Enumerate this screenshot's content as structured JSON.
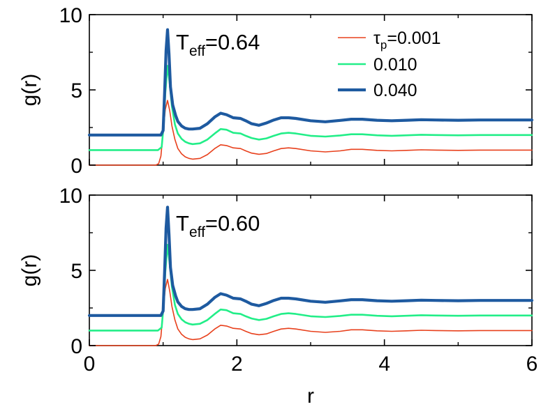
{
  "chart_data": [
    {
      "type": "line",
      "annotation": {
        "prefix": "T",
        "subscript": "eff",
        "value": "=0.64"
      },
      "xlabel": "",
      "ylabel": "g(r)",
      "xlim": [
        0,
        6
      ],
      "ylim": [
        0,
        10
      ],
      "xticks": [
        "0",
        "2",
        "4",
        "6"
      ],
      "yticks": [
        "0",
        "5",
        "10"
      ],
      "grid": false,
      "legend_placement": "top-right",
      "series": [
        {
          "name_prefix": "τ",
          "name_subscript": "p",
          "name_value": "=0.001",
          "color": "#e8401c",
          "width": 1.6,
          "x": [
            0,
            0.9,
            0.94,
            0.97,
            1.0,
            1.03,
            1.06,
            1.09,
            1.12,
            1.16,
            1.2,
            1.25,
            1.3,
            1.35,
            1.4,
            1.5,
            1.6,
            1.7,
            1.78,
            1.86,
            1.95,
            2.05,
            2.12,
            2.2,
            2.3,
            2.4,
            2.5,
            2.6,
            2.7,
            2.8,
            3.0,
            3.2,
            3.4,
            3.55,
            3.7,
            3.9,
            4.1,
            4.3,
            4.5,
            4.7,
            5.0,
            5.3,
            5.6,
            6.0
          ],
          "y": [
            0,
            0,
            0.1,
            0.6,
            2.2,
            3.7,
            4.3,
            3.6,
            2.6,
            1.7,
            1.1,
            0.75,
            0.55,
            0.45,
            0.4,
            0.45,
            0.7,
            1.1,
            1.35,
            1.3,
            1.15,
            1.1,
            0.95,
            0.8,
            0.72,
            0.78,
            0.95,
            1.1,
            1.15,
            1.1,
            0.95,
            0.88,
            0.95,
            1.05,
            1.05,
            0.98,
            0.95,
            0.98,
            1.02,
            1.0,
            0.98,
            1.0,
            1.0,
            1.0
          ]
        },
        {
          "name": "0.010",
          "color": "#22ee88",
          "width": 2.6,
          "x": [
            0,
            0.93,
            0.98,
            1.01,
            1.03,
            1.06,
            1.09,
            1.12,
            1.16,
            1.2,
            1.25,
            1.3,
            1.35,
            1.4,
            1.5,
            1.6,
            1.7,
            1.78,
            1.86,
            1.95,
            2.05,
            2.12,
            2.2,
            2.3,
            2.4,
            2.5,
            2.6,
            2.7,
            2.8,
            3.0,
            3.2,
            3.4,
            3.55,
            3.7,
            3.9,
            4.1,
            4.3,
            4.5,
            4.7,
            5.0,
            5.3,
            5.6,
            6.0
          ],
          "y": [
            1,
            1,
            1.2,
            2.8,
            4.8,
            6.6,
            5.4,
            3.9,
            2.7,
            2.1,
            1.75,
            1.55,
            1.45,
            1.4,
            1.45,
            1.7,
            2.1,
            2.4,
            2.35,
            2.15,
            2.1,
            1.95,
            1.8,
            1.7,
            1.78,
            1.95,
            2.1,
            2.15,
            2.1,
            1.95,
            1.9,
            1.97,
            2.05,
            2.05,
            1.98,
            1.95,
            1.98,
            2.02,
            2.0,
            1.98,
            2.0,
            2.0,
            2.0
          ]
        },
        {
          "name": "0.040",
          "color": "#1e5aa0",
          "width": 4.2,
          "x": [
            0,
            0.97,
            1.0,
            1.02,
            1.04,
            1.06,
            1.08,
            1.1,
            1.13,
            1.17,
            1.2,
            1.25,
            1.3,
            1.35,
            1.4,
            1.5,
            1.6,
            1.7,
            1.78,
            1.86,
            1.95,
            2.05,
            2.12,
            2.2,
            2.3,
            2.4,
            2.5,
            2.6,
            2.7,
            2.8,
            3.0,
            3.2,
            3.4,
            3.55,
            3.7,
            3.9,
            4.1,
            4.3,
            4.5,
            4.7,
            5.0,
            5.3,
            5.6,
            6.0
          ],
          "y": [
            2,
            2,
            2.3,
            4.8,
            7.6,
            9.0,
            7.4,
            5.2,
            4.0,
            3.3,
            2.9,
            2.6,
            2.45,
            2.4,
            2.4,
            2.45,
            2.75,
            3.2,
            3.45,
            3.35,
            3.15,
            3.1,
            2.95,
            2.75,
            2.65,
            2.8,
            3.0,
            3.15,
            3.15,
            3.1,
            2.95,
            2.88,
            2.97,
            3.05,
            3.05,
            2.98,
            2.95,
            2.98,
            3.02,
            3.0,
            2.98,
            3.0,
            3.0,
            3.0
          ]
        }
      ]
    },
    {
      "type": "line",
      "annotation": {
        "prefix": "T",
        "subscript": "eff",
        "value": "=0.60"
      },
      "xlabel": "r",
      "ylabel": "g(r)",
      "xlim": [
        0,
        6
      ],
      "ylim": [
        0,
        10
      ],
      "xticks": [
        "0",
        "2",
        "4",
        "6"
      ],
      "yticks": [
        "0",
        "5",
        "10"
      ],
      "grid": false,
      "series": [
        {
          "color": "#e8401c",
          "width": 1.6,
          "x": [
            0,
            0.9,
            0.94,
            0.97,
            1.0,
            1.03,
            1.06,
            1.09,
            1.12,
            1.16,
            1.2,
            1.25,
            1.3,
            1.35,
            1.4,
            1.5,
            1.6,
            1.7,
            1.78,
            1.86,
            1.95,
            2.05,
            2.12,
            2.2,
            2.3,
            2.4,
            2.5,
            2.6,
            2.7,
            2.8,
            3.0,
            3.2,
            3.4,
            3.55,
            3.7,
            3.9,
            4.1,
            4.3,
            4.5,
            4.7,
            5.0,
            5.3,
            5.6,
            6.0
          ],
          "y": [
            0,
            0,
            0.1,
            0.6,
            2.3,
            3.8,
            4.4,
            3.6,
            2.6,
            1.7,
            1.1,
            0.75,
            0.55,
            0.45,
            0.4,
            0.45,
            0.7,
            1.1,
            1.35,
            1.3,
            1.15,
            1.1,
            0.95,
            0.8,
            0.72,
            0.78,
            0.95,
            1.1,
            1.15,
            1.1,
            0.95,
            0.88,
            0.95,
            1.05,
            1.05,
            0.98,
            0.95,
            0.98,
            1.02,
            1.0,
            0.98,
            1.0,
            1.0,
            1.0
          ]
        },
        {
          "color": "#22ee88",
          "width": 2.6,
          "x": [
            0,
            0.93,
            0.98,
            1.01,
            1.03,
            1.06,
            1.09,
            1.12,
            1.16,
            1.2,
            1.25,
            1.3,
            1.35,
            1.4,
            1.5,
            1.6,
            1.7,
            1.78,
            1.86,
            1.95,
            2.05,
            2.12,
            2.2,
            2.3,
            2.4,
            2.5,
            2.6,
            2.7,
            2.8,
            3.0,
            3.2,
            3.4,
            3.55,
            3.7,
            3.9,
            4.1,
            4.3,
            4.5,
            4.7,
            5.0,
            5.3,
            5.6,
            6.0
          ],
          "y": [
            1,
            1,
            1.2,
            2.9,
            4.9,
            6.7,
            5.4,
            3.9,
            2.7,
            2.1,
            1.75,
            1.55,
            1.45,
            1.4,
            1.45,
            1.7,
            2.1,
            2.4,
            2.35,
            2.15,
            2.1,
            1.95,
            1.8,
            1.7,
            1.78,
            1.95,
            2.1,
            2.15,
            2.1,
            1.95,
            1.9,
            1.97,
            2.05,
            2.05,
            1.98,
            1.95,
            1.98,
            2.02,
            2.0,
            1.98,
            2.0,
            2.0,
            2.0
          ]
        },
        {
          "color": "#1e5aa0",
          "width": 4.2,
          "x": [
            0,
            0.97,
            1.0,
            1.02,
            1.04,
            1.06,
            1.08,
            1.1,
            1.13,
            1.17,
            1.2,
            1.25,
            1.3,
            1.35,
            1.4,
            1.5,
            1.6,
            1.7,
            1.78,
            1.86,
            1.95,
            2.05,
            2.12,
            2.2,
            2.3,
            2.4,
            2.5,
            2.6,
            2.7,
            2.8,
            3.0,
            3.2,
            3.4,
            3.55,
            3.7,
            3.9,
            4.1,
            4.3,
            4.5,
            4.7,
            5.0,
            5.3,
            5.6,
            6.0
          ],
          "y": [
            2,
            2,
            2.3,
            4.9,
            7.8,
            9.2,
            7.4,
            5.2,
            4.0,
            3.3,
            2.9,
            2.6,
            2.45,
            2.4,
            2.4,
            2.45,
            2.75,
            3.2,
            3.45,
            3.35,
            3.15,
            3.1,
            2.95,
            2.75,
            2.65,
            2.8,
            3.0,
            3.15,
            3.15,
            3.1,
            2.95,
            2.88,
            2.97,
            3.05,
            3.05,
            2.98,
            2.95,
            2.98,
            3.02,
            3.0,
            2.98,
            3.0,
            3.0,
            3.0
          ]
        }
      ]
    }
  ]
}
